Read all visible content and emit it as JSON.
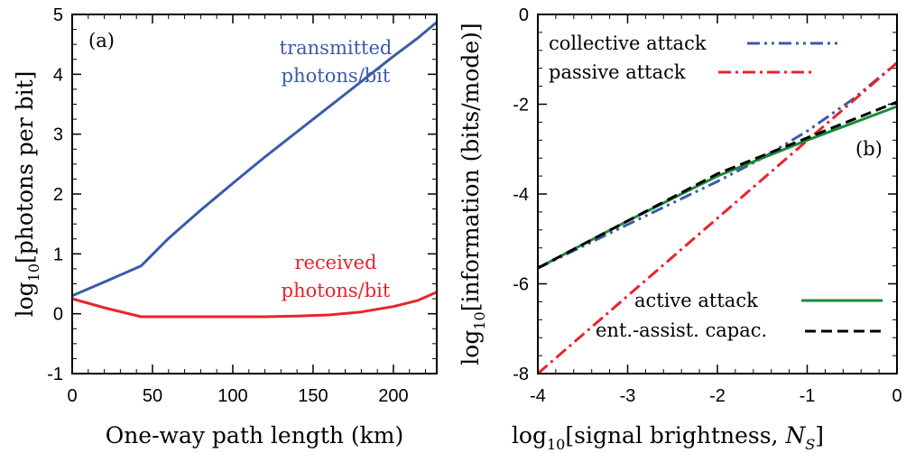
{
  "colors": {
    "blue": "#3b5ba9",
    "red": "#e8242b",
    "green": "#1a8c3a",
    "black": "#000000"
  },
  "chart_data": [
    {
      "type": "line",
      "panel_label": "(a)",
      "xlabel": "One-way path length (km)",
      "ylabel_main": "log",
      "ylabel_sub": "10",
      "ylabel_rest": "[photons per bit]",
      "xlim": [
        0,
        227
      ],
      "ylim": [
        -1,
        5
      ],
      "xticks": [
        0,
        50,
        100,
        150,
        200
      ],
      "yticks": [
        -1,
        0,
        1,
        2,
        3,
        4,
        5
      ],
      "grid": false,
      "series": [
        {
          "annotation": [
            "transmitted",
            "photons/bit"
          ],
          "color": "#3b5ba9",
          "x": [
            0,
            20,
            43,
            60,
            80,
            100,
            120,
            140,
            160,
            180,
            200,
            215,
            227
          ],
          "y": [
            0.3,
            0.53,
            0.8,
            1.26,
            1.73,
            2.18,
            2.62,
            3.04,
            3.46,
            3.88,
            4.3,
            4.6,
            4.87
          ]
        },
        {
          "annotation": [
            "received",
            "photons/bit"
          ],
          "color": "#e8242b",
          "x": [
            0,
            20,
            43,
            60,
            80,
            100,
            120,
            140,
            160,
            180,
            200,
            215,
            227
          ],
          "y": [
            0.25,
            0.1,
            -0.05,
            -0.05,
            -0.05,
            -0.05,
            -0.05,
            -0.04,
            -0.02,
            0.03,
            0.12,
            0.22,
            0.36
          ]
        }
      ]
    },
    {
      "type": "line",
      "panel_label": "(b)",
      "xlabel_main": "log",
      "xlabel_sub": "10",
      "xlabel_rest": "[signal brightness, ",
      "xlabel_var": "N",
      "xlabel_var_sub": "S",
      "xlabel_close": "]",
      "ylabel_main": "log",
      "ylabel_sub": "10",
      "ylabel_rest": "[information (bits/mode)]",
      "xlim": [
        -4,
        0
      ],
      "ylim": [
        -8,
        0
      ],
      "xticks": [
        -4,
        -3,
        -2,
        -1,
        0
      ],
      "yticks": [
        -8,
        -6,
        -4,
        -2,
        0
      ],
      "ytick_labels": [
        "-8",
        "-6",
        "-4",
        "-2",
        "0"
      ],
      "grid": false,
      "legend_position": "top-left and bottom-right",
      "series": [
        {
          "name": "collective attack",
          "color": "#3b5ba9",
          "dash": "14 5 3 5 3 5",
          "x": [
            -4,
            -3,
            -2,
            -1.5,
            -1,
            -0.5,
            0
          ],
          "y": [
            -5.65,
            -4.68,
            -3.72,
            -3.2,
            -2.6,
            -1.9,
            -1.08
          ]
        },
        {
          "name": "passive attack",
          "color": "#e8242b",
          "dash": "14 5 3 5",
          "x": [
            -4,
            0
          ],
          "y": [
            -8,
            -1.08
          ]
        },
        {
          "name": "active attack",
          "color": "#1a8c3a",
          "dash": "",
          "x": [
            -4,
            -3,
            -2,
            -1,
            0
          ],
          "y": [
            -5.65,
            -4.6,
            -3.6,
            -2.8,
            -2.05
          ]
        },
        {
          "name": "ent.-assist. capac.",
          "color": "#000000",
          "dash": "12 6",
          "x": [
            -4,
            -3,
            -2,
            -1,
            0
          ],
          "y": [
            -5.65,
            -4.6,
            -3.55,
            -2.75,
            -1.95
          ]
        }
      ]
    }
  ]
}
